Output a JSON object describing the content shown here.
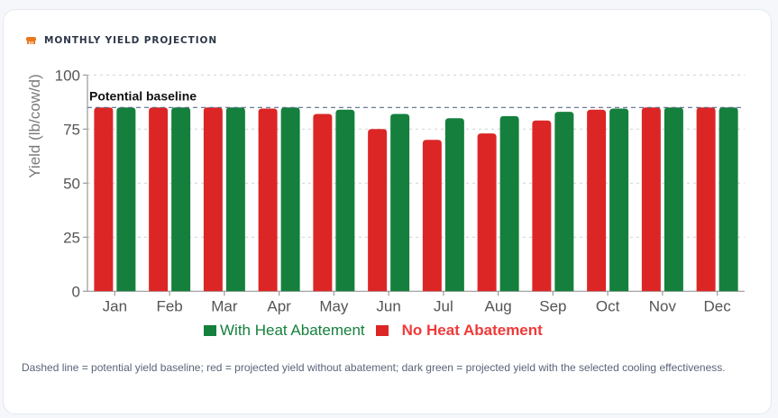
{
  "card": {
    "title": "MONTHLY YIELD PROJECTION",
    "icon": "cow-icon",
    "icon_color": "#e8791d",
    "caption": "Dashed line = potential yield baseline; red = projected yield without abatement; dark green = projected yield with the selected cooling effectiveness."
  },
  "legend": {
    "items": [
      {
        "label": "With Heat Abatement",
        "color": "#15803d"
      },
      {
        "label": "No Heat Abatement",
        "color": "#dc2626"
      }
    ]
  },
  "baseline": {
    "label": "Potential baseline",
    "value": 85
  },
  "chart_data": {
    "type": "bar",
    "title": "Monthly Yield Projection",
    "xlabel": "",
    "ylabel": "Yield (lb/cow/d)",
    "ylim": [
      0,
      100
    ],
    "yticks": [
      0,
      25,
      50,
      75,
      100
    ],
    "grid": true,
    "legend_position": "bottom",
    "categories": [
      "Jan",
      "Feb",
      "Mar",
      "Apr",
      "May",
      "Jun",
      "Jul",
      "Aug",
      "Sep",
      "Oct",
      "Nov",
      "Dec"
    ],
    "series": [
      {
        "name": "No Heat Abatement",
        "color": "#dc2626",
        "values": [
          85,
          85,
          85,
          84.5,
          82,
          75,
          70,
          73,
          79,
          84,
          85,
          85
        ]
      },
      {
        "name": "With Heat Abatement",
        "color": "#15803d",
        "values": [
          85,
          85,
          85,
          85,
          84,
          82,
          80,
          81,
          83,
          84.5,
          85,
          85
        ]
      }
    ],
    "annotations": [
      {
        "type": "hline",
        "y": 85,
        "style": "dashed",
        "label": "Potential baseline"
      }
    ]
  }
}
